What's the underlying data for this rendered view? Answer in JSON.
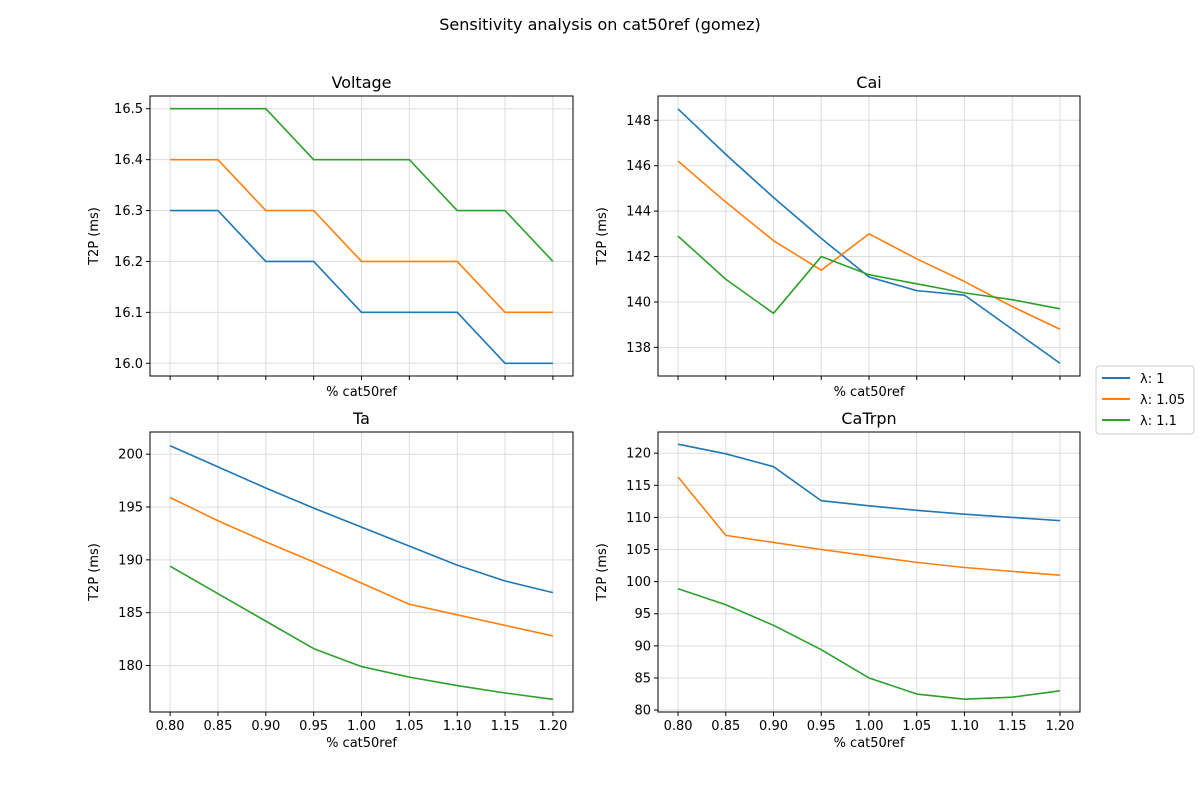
{
  "figure": {
    "suptitle": "Sensitivity analysis on cat50ref (gomez)"
  },
  "legend": {
    "placement": "center-right",
    "entries": [
      "λ: 1",
      "λ: 1.05",
      "λ: 1.1"
    ]
  },
  "colors": {
    "series": [
      "#1f77b4",
      "#ff7f0e",
      "#2ca02c"
    ],
    "grid": "#dddddd"
  },
  "chart_data": [
    {
      "type": "line",
      "title": "Voltage",
      "xlabel": "% cat50ref",
      "ylabel": "T2P (ms)",
      "x": [
        0.8,
        0.85,
        0.9,
        0.95,
        1.0,
        1.05,
        1.1,
        1.15,
        1.2
      ],
      "xlim": [
        0.779,
        1.221
      ],
      "ylim": [
        15.975,
        16.525
      ],
      "yticks": [
        16.0,
        16.1,
        16.2,
        16.3,
        16.4,
        16.5
      ],
      "ytick_labels": [
        "16.0",
        "16.1",
        "16.2",
        "16.3",
        "16.4",
        "16.5"
      ],
      "grid": true,
      "series": [
        {
          "name": "λ: 1",
          "values": [
            16.3,
            16.3,
            16.2,
            16.2,
            16.1,
            16.1,
            16.1,
            16.0,
            16.0
          ]
        },
        {
          "name": "λ: 1.05",
          "values": [
            16.4,
            16.4,
            16.3,
            16.3,
            16.2,
            16.2,
            16.2,
            16.1,
            16.1
          ]
        },
        {
          "name": "λ: 1.1",
          "values": [
            16.5,
            16.5,
            16.5,
            16.4,
            16.4,
            16.4,
            16.3,
            16.3,
            16.2
          ]
        }
      ]
    },
    {
      "type": "line",
      "title": "Cai",
      "xlabel": "% cat50ref",
      "ylabel": "T2P (ms)",
      "x": [
        0.8,
        0.85,
        0.9,
        0.95,
        1.0,
        1.05,
        1.1,
        1.15,
        1.2
      ],
      "xlim": [
        0.779,
        1.221
      ],
      "ylim": [
        136.74,
        149.07
      ],
      "yticks": [
        138,
        140,
        142,
        144,
        146,
        148
      ],
      "ytick_labels": [
        "138",
        "140",
        "142",
        "144",
        "146",
        "148"
      ],
      "grid": true,
      "series": [
        {
          "name": "λ: 1",
          "values": [
            148.5,
            146.5,
            144.6,
            142.8,
            141.1,
            140.5,
            140.3,
            138.8,
            137.3
          ]
        },
        {
          "name": "λ: 1.05",
          "values": [
            146.2,
            144.4,
            142.7,
            141.4,
            143.0,
            141.9,
            140.9,
            139.8,
            138.8
          ]
        },
        {
          "name": "λ: 1.1",
          "values": [
            142.9,
            141.0,
            139.5,
            142.0,
            141.2,
            140.8,
            140.4,
            140.1,
            139.7
          ]
        }
      ]
    },
    {
      "type": "line",
      "title": "Ta",
      "xlabel": "% cat50ref",
      "ylabel": "T2P (ms)",
      "x": [
        0.8,
        0.85,
        0.9,
        0.95,
        1.0,
        1.05,
        1.1,
        1.15,
        1.2
      ],
      "xticks": [
        0.8,
        0.85,
        0.9,
        0.95,
        1.0,
        1.05,
        1.1,
        1.15,
        1.2
      ],
      "xtick_labels": [
        "0.80",
        "0.85",
        "0.90",
        "0.95",
        "1.00",
        "1.05",
        "1.10",
        "1.15",
        "1.20"
      ],
      "xlim": [
        0.779,
        1.221
      ],
      "ylim": [
        175.6,
        202.1
      ],
      "yticks": [
        180,
        185,
        190,
        195,
        200
      ],
      "ytick_labels": [
        "180",
        "185",
        "190",
        "195",
        "200"
      ],
      "grid": true,
      "series": [
        {
          "name": "λ: 1",
          "values": [
            200.8,
            198.8,
            196.8,
            194.9,
            193.1,
            191.3,
            189.5,
            188.0,
            186.9
          ]
        },
        {
          "name": "λ: 1.05",
          "values": [
            195.9,
            193.7,
            191.7,
            189.8,
            187.8,
            185.8,
            184.8,
            183.8,
            182.8
          ]
        },
        {
          "name": "λ: 1.1",
          "values": [
            189.4,
            186.8,
            184.2,
            181.6,
            179.9,
            178.9,
            178.1,
            177.4,
            176.8
          ]
        }
      ]
    },
    {
      "type": "line",
      "title": "CaTrpn",
      "xlabel": "% cat50ref",
      "ylabel": "T2P (ms)",
      "x": [
        0.8,
        0.85,
        0.9,
        0.95,
        1.0,
        1.05,
        1.1,
        1.15,
        1.2
      ],
      "xticks": [
        0.8,
        0.85,
        0.9,
        0.95,
        1.0,
        1.05,
        1.1,
        1.15,
        1.2
      ],
      "xtick_labels": [
        "0.80",
        "0.85",
        "0.90",
        "0.95",
        "1.00",
        "1.05",
        "1.10",
        "1.15",
        "1.20"
      ],
      "xlim": [
        0.779,
        1.221
      ],
      "ylim": [
        79.7,
        123.3
      ],
      "yticks": [
        80,
        85,
        90,
        95,
        100,
        105,
        110,
        115,
        120
      ],
      "ytick_labels": [
        "80",
        "85",
        "90",
        "95",
        "100",
        "105",
        "110",
        "115",
        "120"
      ],
      "grid": true,
      "series": [
        {
          "name": "λ: 1",
          "values": [
            121.4,
            119.9,
            117.9,
            112.6,
            111.8,
            111.1,
            110.5,
            110.0,
            109.5
          ]
        },
        {
          "name": "λ: 1.05",
          "values": [
            116.3,
            107.2,
            106.1,
            105.0,
            104.0,
            103.0,
            102.2,
            101.6,
            101.0
          ]
        },
        {
          "name": "λ: 1.1",
          "values": [
            98.9,
            96.4,
            93.2,
            89.4,
            85.0,
            82.5,
            81.7,
            82.0,
            83.0
          ]
        }
      ]
    }
  ]
}
